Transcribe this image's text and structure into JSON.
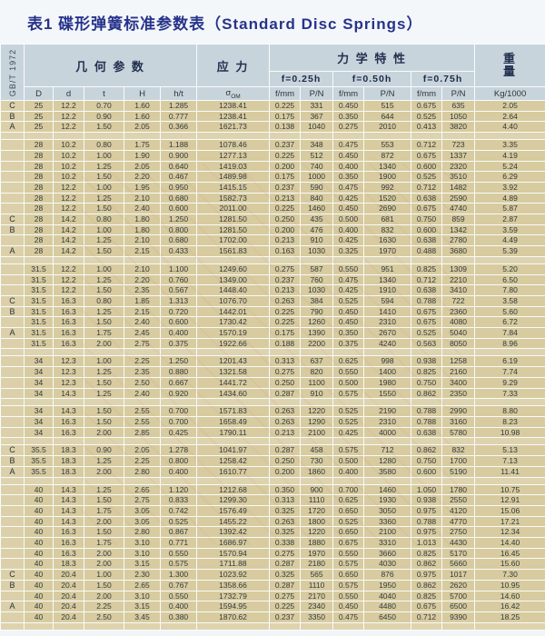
{
  "title": "表1 碟形弹簧标准参数表（Standard Disc Springs）",
  "standard_label": "GB/T 1972",
  "header": {
    "group_geometry": "几 何 参 数",
    "group_stress": "应 力",
    "group_mech": "力 学 特 性",
    "weight_line1": "重",
    "weight_line2": "量",
    "sub_f025": "f=0.25h",
    "sub_f050": "f=0.50h",
    "sub_f075": "f=0.75h",
    "columns": {
      "c1": "D",
      "c2": "d",
      "c3": "t",
      "c4": "H",
      "c5": "h/t",
      "sigma": "σ",
      "sigma_sub": "OM",
      "f": "f/mm",
      "p": "P/N",
      "weight_unit": "Kg/1000"
    }
  },
  "blocks": [
    {
      "rows": [
        {
          "label": "C",
          "cells": [
            "25",
            "12.2",
            "0.70",
            "1.60",
            "1.285",
            "1238.41",
            "0.225",
            "331",
            "0.450",
            "515",
            "0.675",
            "635",
            "2.05"
          ]
        },
        {
          "label": "B",
          "cells": [
            "25",
            "12.2",
            "0.90",
            "1.60",
            "0.777",
            "1238.41",
            "0.175",
            "367",
            "0.350",
            "644",
            "0.525",
            "1050",
            "2.64"
          ]
        },
        {
          "label": "A",
          "cells": [
            "25",
            "12.2",
            "1.50",
            "2.05",
            "0.366",
            "1621.73",
            "0.138",
            "1040",
            "0.275",
            "2010",
            "0.413",
            "3820",
            "4.40"
          ]
        }
      ]
    },
    {
      "rows": [
        {
          "label": "",
          "cells": [
            "28",
            "10.2",
            "0.80",
            "1.75",
            "1.188",
            "1078.46",
            "0.237",
            "348",
            "0.475",
            "553",
            "0.712",
            "723",
            "3.35"
          ]
        },
        {
          "label": "",
          "cells": [
            "28",
            "10.2",
            "1.00",
            "1.90",
            "0.900",
            "1277.13",
            "0.225",
            "512",
            "0.450",
            "872",
            "0.675",
            "1337",
            "4.19"
          ]
        },
        {
          "label": "",
          "cells": [
            "28",
            "10.2",
            "1.25",
            "2.05",
            "0.640",
            "1419.03",
            "0.200",
            "740",
            "0.400",
            "1340",
            "0.600",
            "2320",
            "5.24"
          ]
        },
        {
          "label": "",
          "cells": [
            "28",
            "10.2",
            "1.50",
            "2.20",
            "0.467",
            "1489.98",
            "0.175",
            "1000",
            "0.350",
            "1900",
            "0.525",
            "3510",
            "6.29"
          ]
        },
        {
          "label": "",
          "cells": [
            "28",
            "12.2",
            "1.00",
            "1.95",
            "0.950",
            "1415.15",
            "0.237",
            "590",
            "0.475",
            "992",
            "0.712",
            "1482",
            "3.92"
          ]
        },
        {
          "label": "",
          "cells": [
            "28",
            "12.2",
            "1.25",
            "2.10",
            "0.680",
            "1582.73",
            "0.213",
            "840",
            "0.425",
            "1520",
            "0.638",
            "2590",
            "4.89"
          ]
        },
        {
          "label": "",
          "cells": [
            "28",
            "12.2",
            "1.50",
            "2.40",
            "0.600",
            "2011.00",
            "0.225",
            "1460",
            "0.450",
            "2690",
            "0.675",
            "4740",
            "5.87"
          ]
        },
        {
          "label": "C",
          "cells": [
            "28",
            "14.2",
            "0.80",
            "1.80",
            "1.250",
            "1281.50",
            "0.250",
            "435",
            "0.500",
            "681",
            "0.750",
            "859",
            "2.87"
          ]
        },
        {
          "label": "B",
          "cells": [
            "28",
            "14.2",
            "1.00",
            "1.80",
            "0.800",
            "1281.50",
            "0.200",
            "476",
            "0.400",
            "832",
            "0.600",
            "1342",
            "3.59"
          ]
        },
        {
          "label": "",
          "cells": [
            "28",
            "14.2",
            "1.25",
            "2.10",
            "0.680",
            "1702.00",
            "0.213",
            "910",
            "0.425",
            "1630",
            "0.638",
            "2780",
            "4.49"
          ]
        },
        {
          "label": "A",
          "cells": [
            "28",
            "14.2",
            "1.50",
            "2.15",
            "0.433",
            "1561.83",
            "0.163",
            "1030",
            "0.325",
            "1970",
            "0.488",
            "3680",
            "5.39"
          ]
        }
      ]
    },
    {
      "rows": [
        {
          "label": "",
          "cells": [
            "31.5",
            "12.2",
            "1.00",
            "2.10",
            "1.100",
            "1249.60",
            "0.275",
            "587",
            "0.550",
            "951",
            "0.825",
            "1309",
            "5.20"
          ]
        },
        {
          "label": "",
          "cells": [
            "31.5",
            "12.2",
            "1.25",
            "2.20",
            "0.760",
            "1349.00",
            "0.237",
            "760",
            "0.475",
            "1340",
            "0.712",
            "2210",
            "6.50"
          ]
        },
        {
          "label": "",
          "cells": [
            "31.5",
            "12.2",
            "1.50",
            "2.35",
            "0.567",
            "1448.40",
            "0.213",
            "1030",
            "0.425",
            "1910",
            "0.638",
            "3410",
            "7.80"
          ]
        },
        {
          "label": "C",
          "cells": [
            "31.5",
            "16.3",
            "0.80",
            "1.85",
            "1.313",
            "1076.70",
            "0.263",
            "384",
            "0.525",
            "594",
            "0.788",
            "722",
            "3.58"
          ]
        },
        {
          "label": "B",
          "cells": [
            "31.5",
            "16.3",
            "1.25",
            "2.15",
            "0.720",
            "1442.01",
            "0.225",
            "790",
            "0.450",
            "1410",
            "0.675",
            "2360",
            "5.60"
          ]
        },
        {
          "label": "",
          "cells": [
            "31.5",
            "16.3",
            "1.50",
            "2.40",
            "0.600",
            "1730.42",
            "0.225",
            "1260",
            "0.450",
            "2310",
            "0.675",
            "4080",
            "6.72"
          ]
        },
        {
          "label": "A",
          "cells": [
            "31.5",
            "16.3",
            "1.75",
            "2.45",
            "0.400",
            "1570.19",
            "0.175",
            "1390",
            "0.350",
            "2670",
            "0.525",
            "5040",
            "7.84"
          ]
        },
        {
          "label": "",
          "cells": [
            "31.5",
            "16.3",
            "2.00",
            "2.75",
            "0.375",
            "1922.66",
            "0.188",
            "2200",
            "0.375",
            "4240",
            "0.563",
            "8050",
            "8.96"
          ]
        }
      ]
    },
    {
      "rows": [
        {
          "label": "",
          "cells": [
            "34",
            "12.3",
            "1.00",
            "2.25",
            "1.250",
            "1201.43",
            "0.313",
            "637",
            "0.625",
            "998",
            "0.938",
            "1258",
            "6.19"
          ]
        },
        {
          "label": "",
          "cells": [
            "34",
            "12.3",
            "1.25",
            "2.35",
            "0.880",
            "1321.58",
            "0.275",
            "820",
            "0.550",
            "1400",
            "0.825",
            "2160",
            "7.74"
          ]
        },
        {
          "label": "",
          "cells": [
            "34",
            "12.3",
            "1.50",
            "2.50",
            "0.667",
            "1441.72",
            "0.250",
            "1100",
            "0.500",
            "1980",
            "0.750",
            "3400",
            "9.29"
          ]
        },
        {
          "label": "",
          "cells": [
            "34",
            "14.3",
            "1.25",
            "2.40",
            "0.920",
            "1434.60",
            "0.287",
            "910",
            "0.575",
            "1550",
            "0.862",
            "2350",
            "7.33"
          ]
        }
      ]
    },
    {
      "rows": [
        {
          "label": "",
          "cells": [
            "34",
            "14.3",
            "1.50",
            "2.55",
            "0.700",
            "1571.83",
            "0.263",
            "1220",
            "0.525",
            "2190",
            "0.788",
            "2990",
            "8.80"
          ]
        },
        {
          "label": "",
          "cells": [
            "34",
            "16.3",
            "1.50",
            "2.55",
            "0.700",
            "1658.49",
            "0.263",
            "1290",
            "0.525",
            "2310",
            "0.788",
            "3160",
            "8.23"
          ]
        },
        {
          "label": "",
          "cells": [
            "34",
            "16.3",
            "2.00",
            "2.85",
            "0.425",
            "1790.11",
            "0.213",
            "2100",
            "0.425",
            "4000",
            "0.638",
            "5780",
            "10.98"
          ]
        }
      ]
    },
    {
      "rows": [
        {
          "label": "C",
          "cells": [
            "35.5",
            "18.3",
            "0.90",
            "2.05",
            "1.278",
            "1041.97",
            "0.287",
            "458",
            "0.575",
            "712",
            "0.862",
            "832",
            "5.13"
          ]
        },
        {
          "label": "B",
          "cells": [
            "35.5",
            "18.3",
            "1.25",
            "2.25",
            "0.800",
            "1258.42",
            "0.250",
            "730",
            "0.500",
            "1280",
            "0.750",
            "1700",
            "7.13"
          ]
        },
        {
          "label": "A",
          "cells": [
            "35.5",
            "18.3",
            "2.00",
            "2.80",
            "0.400",
            "1610.77",
            "0.200",
            "1860",
            "0.400",
            "3580",
            "0.600",
            "5190",
            "11.41"
          ]
        }
      ]
    },
    {
      "rows": [
        {
          "label": "",
          "cells": [
            "40",
            "14.3",
            "1.25",
            "2.65",
            "1.120",
            "1212.68",
            "0.350",
            "900",
            "0.700",
            "1460",
            "1.050",
            "1780",
            "10.75"
          ]
        },
        {
          "label": "",
          "cells": [
            "40",
            "14.3",
            "1.50",
            "2.75",
            "0.833",
            "1299.30",
            "0.313",
            "1110",
            "0.625",
            "1930",
            "0.938",
            "2550",
            "12.91"
          ]
        },
        {
          "label": "",
          "cells": [
            "40",
            "14.3",
            "1.75",
            "3.05",
            "0.742",
            "1576.49",
            "0.325",
            "1720",
            "0.650",
            "3050",
            "0.975",
            "4120",
            "15.06"
          ]
        },
        {
          "label": "",
          "cells": [
            "40",
            "14.3",
            "2.00",
            "3.05",
            "0.525",
            "1455.22",
            "0.263",
            "1800",
            "0.525",
            "3360",
            "0.788",
            "4770",
            "17.21"
          ]
        },
        {
          "label": "",
          "cells": [
            "40",
            "16.3",
            "1.50",
            "2.80",
            "0.867",
            "1392.42",
            "0.325",
            "1220",
            "0.650",
            "2100",
            "0.975",
            "2750",
            "12.34"
          ]
        },
        {
          "label": "",
          "cells": [
            "40",
            "16.3",
            "1.75",
            "3.10",
            "0.771",
            "1686.97",
            "0.338",
            "1880",
            "0.675",
            "3310",
            "1.013",
            "4430",
            "14.40"
          ]
        },
        {
          "label": "",
          "cells": [
            "40",
            "16.3",
            "2.00",
            "3.10",
            "0.550",
            "1570.94",
            "0.275",
            "1970",
            "0.550",
            "3660",
            "0.825",
            "5170",
            "16.45"
          ]
        },
        {
          "label": "",
          "cells": [
            "40",
            "18.3",
            "2.00",
            "3.15",
            "0.575",
            "1711.88",
            "0.287",
            "2180",
            "0.575",
            "4030",
            "0.862",
            "5660",
            "15.60"
          ]
        },
        {
          "label": "C",
          "cells": [
            "40",
            "20.4",
            "1.00",
            "2.30",
            "1.300",
            "1023.92",
            "0.325",
            "565",
            "0.650",
            "876",
            "0.975",
            "1017",
            "7.30"
          ]
        },
        {
          "label": "B",
          "cells": [
            "40",
            "20.4",
            "1.50",
            "2.65",
            "0.767",
            "1358.66",
            "0.287",
            "1110",
            "0.575",
            "1950",
            "0.862",
            "2620",
            "10.95"
          ]
        },
        {
          "label": "",
          "cells": [
            "40",
            "20.4",
            "2.00",
            "3.10",
            "0.550",
            "1732.79",
            "0.275",
            "2170",
            "0.550",
            "4040",
            "0.825",
            "5700",
            "14.60"
          ]
        },
        {
          "label": "A",
          "cells": [
            "40",
            "20.4",
            "2.25",
            "3.15",
            "0.400",
            "1594.95",
            "0.225",
            "2340",
            "0.450",
            "4480",
            "0.675",
            "6500",
            "16.42"
          ]
        },
        {
          "label": "",
          "cells": [
            "40",
            "20.4",
            "2.50",
            "3.45",
            "0.380",
            "1870.62",
            "0.237",
            "3350",
            "0.475",
            "6450",
            "0.712",
            "9390",
            "18.25"
          ]
        }
      ]
    }
  ]
}
